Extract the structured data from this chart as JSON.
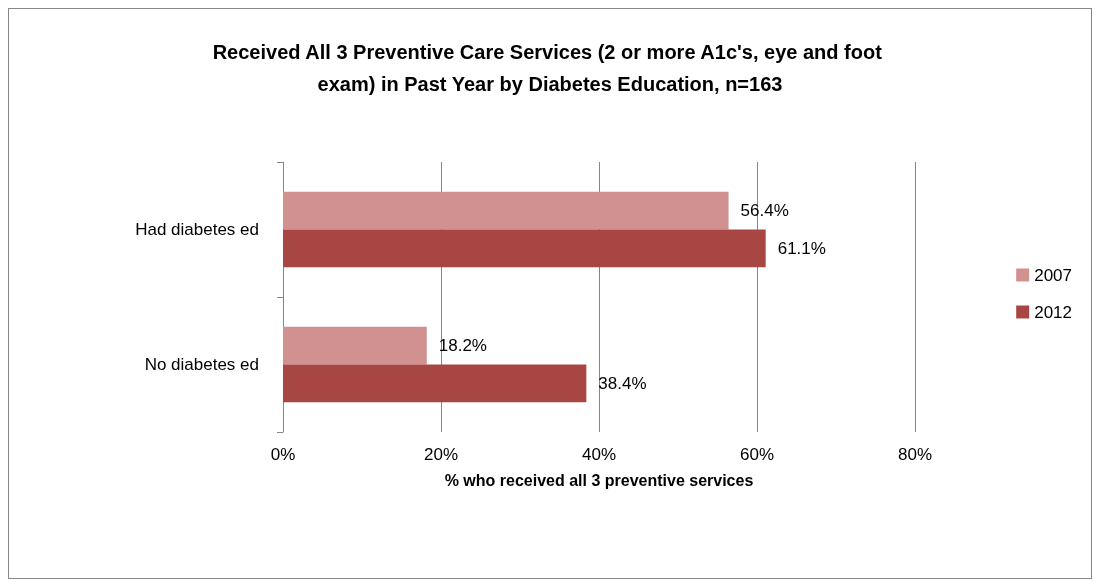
{
  "chart_data": {
    "type": "bar",
    "orientation": "horizontal",
    "title": "Received All 3 Preventive Care Services (2 or more A1c's, eye and foot exam) in Past Year by Diabetes Education, n=163",
    "xlabel": "% who received all 3 preventive services",
    "categories": [
      "Had diabetes ed",
      "No diabetes ed"
    ],
    "series": [
      {
        "name": "2007",
        "color": "#d19190",
        "values": [
          56.4,
          18.2
        ],
        "value_labels": [
          "56.4%",
          "18.2%"
        ]
      },
      {
        "name": "2012",
        "color": "#a84644",
        "values": [
          61.1,
          38.4
        ],
        "value_labels": [
          "61.1%",
          "38.4%"
        ]
      }
    ],
    "xlim": [
      0,
      80
    ],
    "xticks": [
      {
        "value": 0,
        "label": "0%"
      },
      {
        "value": 20,
        "label": "20%"
      },
      {
        "value": 40,
        "label": "40%"
      },
      {
        "value": 60,
        "label": "60%"
      },
      {
        "value": 80,
        "label": "80%"
      }
    ],
    "grid": "x",
    "legend": "right"
  }
}
